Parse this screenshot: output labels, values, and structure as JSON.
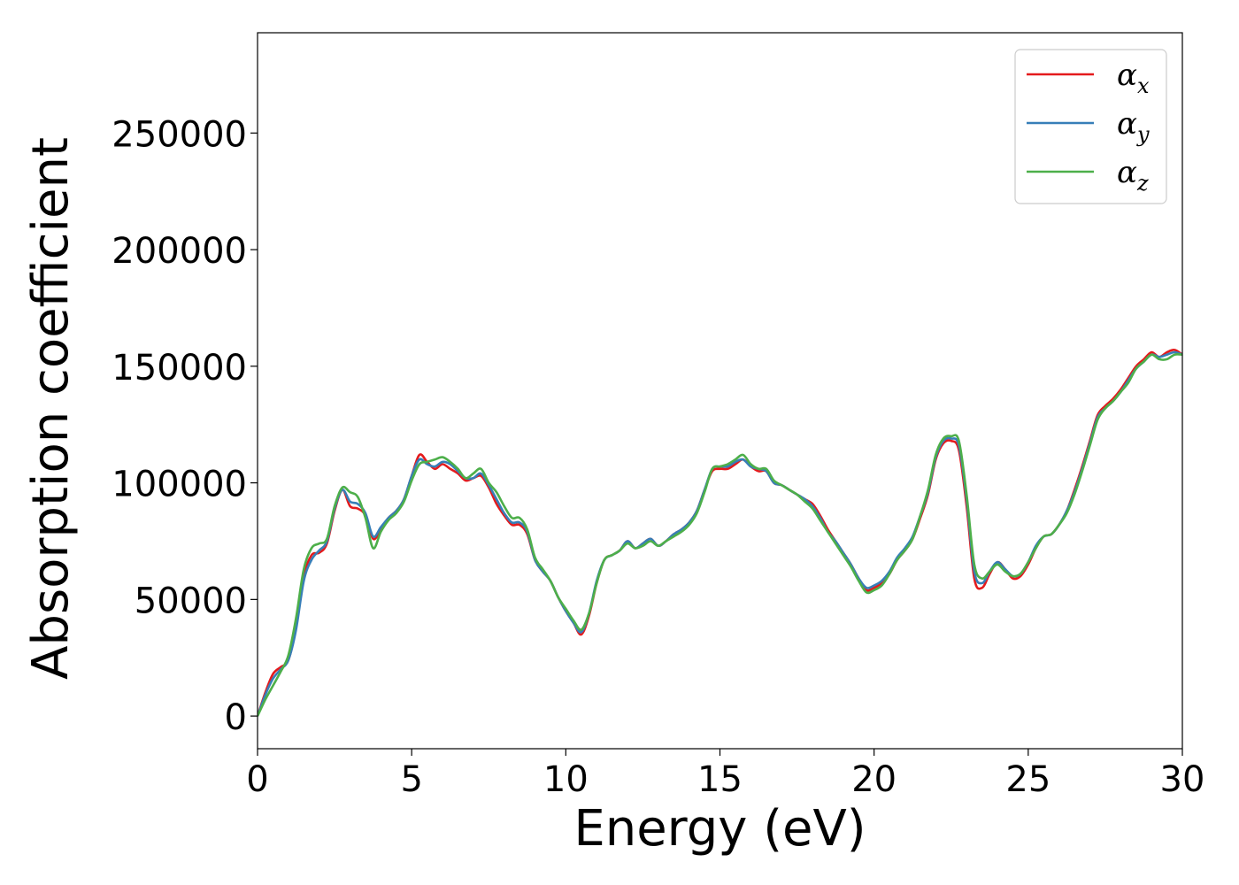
{
  "chart_data": {
    "type": "line",
    "title": "",
    "xlabel": "Energy (eV)",
    "ylabel": "Absorption coefficient",
    "xlim": [
      0,
      30
    ],
    "ylim": [
      -14000,
      293000
    ],
    "xticks": [
      0,
      5,
      10,
      15,
      20,
      25,
      30
    ],
    "xtick_labels": [
      "0",
      "5",
      "10",
      "15",
      "20",
      "25",
      "30"
    ],
    "yticks": [
      0,
      50000,
      100000,
      150000,
      200000,
      250000
    ],
    "ytick_labels": [
      "0",
      "50000",
      "100000",
      "150000",
      "200000",
      "250000"
    ],
    "grid": false,
    "legend_position": "top-right",
    "x": [
      0,
      0.25,
      0.5,
      0.75,
      1.0,
      1.25,
      1.5,
      1.75,
      2.0,
      2.25,
      2.5,
      2.75,
      3.0,
      3.25,
      3.5,
      3.75,
      4.0,
      4.25,
      4.5,
      4.75,
      5.0,
      5.25,
      5.5,
      5.75,
      6.0,
      6.25,
      6.5,
      6.75,
      7.0,
      7.25,
      7.5,
      7.75,
      8.0,
      8.25,
      8.5,
      8.75,
      9.0,
      9.25,
      9.5,
      9.75,
      10.0,
      10.25,
      10.5,
      10.75,
      11.0,
      11.25,
      11.5,
      11.75,
      12.0,
      12.25,
      12.5,
      12.75,
      13.0,
      13.25,
      13.5,
      13.75,
      14.0,
      14.25,
      14.5,
      14.75,
      15.0,
      15.25,
      15.5,
      15.75,
      16.0,
      16.25,
      16.5,
      16.75,
      17.0,
      17.25,
      17.5,
      17.75,
      18.0,
      18.25,
      18.5,
      18.75,
      19.0,
      19.25,
      19.5,
      19.75,
      20.0,
      20.25,
      20.5,
      20.75,
      21.0,
      21.25,
      21.5,
      21.75,
      22.0,
      22.25,
      22.5,
      22.75,
      23.0,
      23.25,
      23.5,
      23.75,
      24.0,
      24.25,
      24.5,
      24.75,
      25.0,
      25.25,
      25.5,
      25.75,
      26.0,
      26.25,
      26.5,
      26.75,
      27.0,
      27.25,
      27.5,
      27.75,
      28.0,
      28.25,
      28.5,
      28.75,
      29.0,
      29.25,
      29.5,
      29.75,
      30.0
    ],
    "series": [
      {
        "name": "αx",
        "color": "#e41a1c",
        "values": [
          0,
          10000,
          18000,
          21000,
          24000,
          38000,
          60000,
          69000,
          70000,
          74000,
          88000,
          97000,
          90000,
          89000,
          86000,
          76000,
          80000,
          85000,
          88000,
          93000,
          103000,
          112000,
          109000,
          106000,
          108000,
          106000,
          104000,
          101000,
          102000,
          103000,
          98000,
          91000,
          86000,
          82000,
          82000,
          78000,
          67000,
          62000,
          58000,
          51000,
          45000,
          40000,
          35000,
          43000,
          57000,
          67000,
          69000,
          71000,
          75000,
          72000,
          74000,
          76000,
          73000,
          75000,
          78000,
          80000,
          83000,
          88000,
          97000,
          105000,
          106000,
          106000,
          108000,
          110000,
          107000,
          105000,
          105000,
          100000,
          99000,
          97000,
          95000,
          93000,
          91000,
          86000,
          80000,
          75000,
          70000,
          65000,
          59000,
          54000,
          55000,
          57000,
          61000,
          67000,
          71000,
          76000,
          85000,
          95000,
          110000,
          117000,
          118000,
          114000,
          90000,
          59000,
          55000,
          61000,
          66000,
          63000,
          59000,
          60000,
          65000,
          72000,
          77000,
          78000,
          82000,
          88000,
          97000,
          107000,
          118000,
          129000,
          133000,
          136000,
          140000,
          145000,
          150000,
          153000,
          156000,
          154000,
          156000,
          157000,
          155000
        ]
      },
      {
        "name": "αy",
        "color": "#377eb8",
        "values": [
          0,
          9000,
          16000,
          20000,
          24000,
          37000,
          58000,
          67000,
          71000,
          75000,
          89000,
          97000,
          92000,
          91000,
          87000,
          77000,
          81000,
          85000,
          88000,
          93000,
          103000,
          110000,
          108000,
          107000,
          109000,
          108000,
          105000,
          102000,
          102000,
          104000,
          99000,
          93000,
          87000,
          83000,
          83000,
          79000,
          67000,
          62000,
          58000,
          51000,
          45000,
          40000,
          36000,
          44000,
          58000,
          67000,
          69000,
          71000,
          75000,
          72000,
          74000,
          76000,
          73000,
          75000,
          78000,
          80000,
          83000,
          88000,
          97000,
          106000,
          107000,
          107000,
          109000,
          110000,
          107000,
          106000,
          105000,
          100000,
          99000,
          97000,
          95000,
          93000,
          90000,
          85000,
          79000,
          75000,
          70000,
          65000,
          59000,
          55000,
          56000,
          58000,
          62000,
          68000,
          72000,
          77000,
          86000,
          96000,
          111000,
          118000,
          119000,
          116000,
          93000,
          62000,
          57000,
          62000,
          66000,
          63000,
          60000,
          61000,
          66000,
          73000,
          77000,
          78000,
          82000,
          88000,
          96000,
          106000,
          117000,
          128000,
          132000,
          135000,
          139000,
          144000,
          149000,
          152000,
          155000,
          154000,
          155000,
          156000,
          155000
        ]
      },
      {
        "name": "αz",
        "color": "#4daf4a",
        "values": [
          0,
          7000,
          13000,
          19000,
          26000,
          42000,
          63000,
          72000,
          74000,
          76000,
          90000,
          98000,
          96000,
          94000,
          85000,
          72000,
          79000,
          84000,
          87000,
          92000,
          101000,
          108000,
          109000,
          110000,
          111000,
          109000,
          106000,
          102000,
          104000,
          106000,
          100000,
          96000,
          90000,
          85000,
          85000,
          80000,
          68000,
          63000,
          58000,
          51000,
          46000,
          41000,
          37000,
          44000,
          57000,
          67000,
          69000,
          71000,
          74000,
          72000,
          73000,
          75000,
          73000,
          75000,
          77000,
          79000,
          82000,
          87000,
          96000,
          106000,
          107000,
          108000,
          110000,
          112000,
          108000,
          106000,
          106000,
          101000,
          99000,
          97000,
          95000,
          92000,
          89000,
          84000,
          79000,
          74000,
          69000,
          64000,
          58000,
          53000,
          54000,
          56000,
          61000,
          67000,
          71000,
          76000,
          86000,
          97000,
          112000,
          119000,
          120000,
          118000,
          95000,
          65000,
          59000,
          62000,
          65000,
          62000,
          60000,
          61000,
          66000,
          72000,
          77000,
          78000,
          82000,
          87000,
          95000,
          105000,
          116000,
          127000,
          132000,
          135000,
          139000,
          143000,
          149000,
          152000,
          155000,
          153000,
          153000,
          155000,
          155000
        ]
      }
    ]
  }
}
